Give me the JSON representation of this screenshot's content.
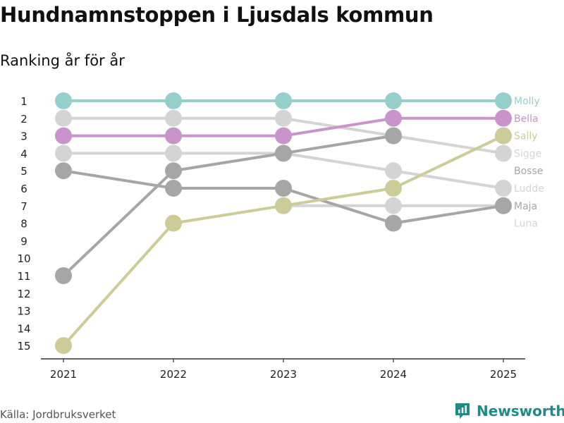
{
  "title": "Hundnamnstoppen i Ljusdals kommun",
  "subtitle": "Ranking år för år",
  "source": "Källa: Jordbruksverket",
  "brand": "Newsworthy",
  "colors": {
    "brand": "#1f8a86",
    "axis": "#333333"
  },
  "chart_data": {
    "type": "line",
    "title": "Hundnamnstoppen i Ljusdals kommun",
    "subtitle": "Ranking år för år",
    "xlabel": "",
    "ylabel": "",
    "x": [
      "2021",
      "2022",
      "2023",
      "2024",
      "2025"
    ],
    "y_ticks": [
      "1",
      "2",
      "3",
      "4",
      "5",
      "6",
      "7",
      "8",
      "9",
      "10",
      "11",
      "12",
      "13",
      "14",
      "15"
    ],
    "ylim": [
      1,
      15
    ],
    "y_inverted": true,
    "series": [
      {
        "name": "Molly",
        "color": "#94cfcc",
        "values": [
          1,
          1,
          1,
          1,
          1
        ]
      },
      {
        "name": "Bella",
        "color": "#c994cc",
        "values": [
          3,
          3,
          3,
          2,
          2
        ]
      },
      {
        "name": "Sally",
        "color": "#cccc99",
        "values": [
          15,
          8,
          7,
          6,
          3
        ]
      },
      {
        "name": "Sigge",
        "color": "#d4d4d4",
        "values": [
          2,
          2,
          2,
          3,
          4
        ]
      },
      {
        "name": "Bosse",
        "color": "#a6a6a6",
        "values": [
          11,
          5,
          4,
          3,
          null
        ]
      },
      {
        "name": "Ludde",
        "color": "#d4d4d4",
        "values": [
          4,
          4,
          4,
          5,
          6
        ]
      },
      {
        "name": "Maja",
        "color": "#a6a6a6",
        "values": [
          5,
          6,
          6,
          8,
          7
        ]
      },
      {
        "name": "Luna",
        "color": "#d4d4d4",
        "values": [
          null,
          null,
          7,
          7,
          7
        ]
      }
    ]
  }
}
